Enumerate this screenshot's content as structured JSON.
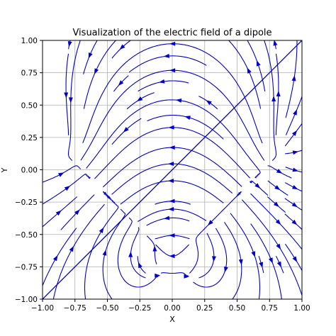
{
  "chart_data": {
    "type": "streamplot",
    "title": "Visualization of the electric field of a dipole",
    "xlabel": "X",
    "ylabel": "Y",
    "xlim": [
      -1.0,
      1.0
    ],
    "ylim": [
      -1.0,
      1.0
    ],
    "xticks": [
      -1.0,
      -0.75,
      -0.5,
      -0.25,
      0.0,
      0.25,
      0.5,
      0.75,
      1.0
    ],
    "yticks": [
      -1.0,
      -0.75,
      -0.5,
      -0.25,
      0.0,
      0.25,
      0.5,
      0.75,
      1.0
    ],
    "xtick_labels": [
      "−1.00",
      "−0.75",
      "−0.50",
      "−0.25",
      "0.00",
      "0.25",
      "0.50",
      "0.75",
      "1.00"
    ],
    "ytick_labels": [
      "−1.00",
      "−0.75",
      "−0.50",
      "−0.25",
      "0.00",
      "0.25",
      "0.50",
      "0.75",
      "1.00"
    ],
    "grid": true,
    "diagonal_line": {
      "from": [
        -1.0,
        -1.0
      ],
      "to": [
        1.0,
        1.0
      ]
    },
    "stream_color": "#0000cc",
    "grid_color": "#b0b0b0"
  }
}
